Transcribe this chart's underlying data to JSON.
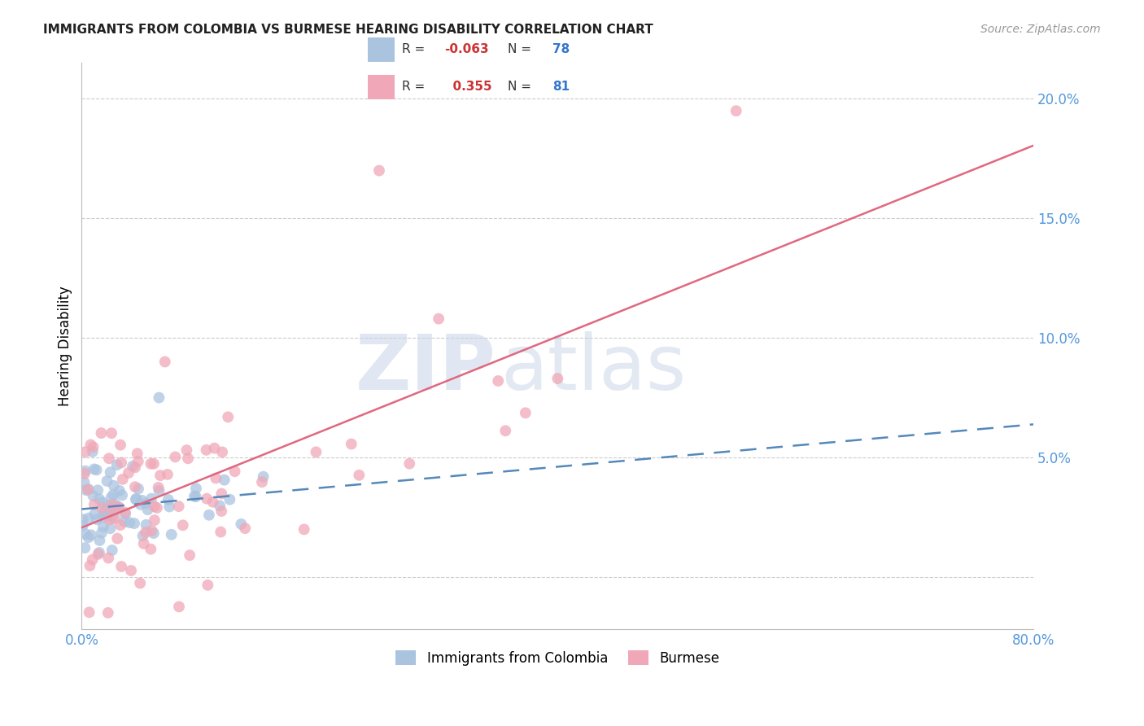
{
  "title": "IMMIGRANTS FROM COLOMBIA VS BURMESE HEARING DISABILITY CORRELATION CHART",
  "source": "Source: ZipAtlas.com",
  "ylabel": "Hearing Disability",
  "xlim": [
    0.0,
    0.8
  ],
  "ylim": [
    -0.022,
    0.215
  ],
  "colombia_color": "#aac4e0",
  "burmese_color": "#f0a8b8",
  "colombia_line_color": "#5588bb",
  "burmese_line_color": "#e06880",
  "colombia_R": -0.063,
  "colombia_N": 78,
  "burmese_R": 0.355,
  "burmese_N": 81,
  "legend_R_color": "#cc3333",
  "legend_N_color": "#3377cc",
  "watermark_zip": "ZIP",
  "watermark_atlas": "atlas",
  "background_color": "#ffffff",
  "grid_color": "#cccccc",
  "tick_color": "#5599dd",
  "source_color": "#999999"
}
